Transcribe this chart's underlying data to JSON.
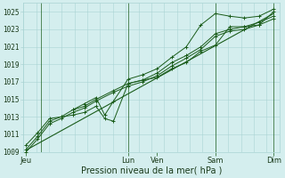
{
  "background_color": "#d4eeee",
  "grid_color": "#aad4d4",
  "line_color": "#1a5c1a",
  "text_color": "#1a3a1a",
  "ylim": [
    1009,
    1026
  ],
  "yticks": [
    1009,
    1011,
    1013,
    1015,
    1017,
    1019,
    1021,
    1023,
    1025
  ],
  "xlabel": "Pression niveau de la mer( hPa )",
  "day_labels": [
    "Jeu",
    "Lun",
    "Ven",
    "Sam",
    "Dim"
  ],
  "day_positions": [
    0.0,
    3.5,
    4.5,
    6.5,
    8.5
  ],
  "vline_positions": [
    0.5,
    3.5,
    6.5,
    8.5
  ],
  "xlim": [
    -0.1,
    8.7
  ],
  "trend_line": {
    "x": [
      0.0,
      8.5
    ],
    "y": [
      1009.2,
      1024.8
    ]
  },
  "series1": {
    "x": [
      0.0,
      0.4,
      0.8,
      1.2,
      1.6,
      2.0,
      2.4,
      2.7,
      3.0,
      3.5,
      4.0,
      4.5,
      5.0,
      5.5,
      6.0,
      6.5,
      7.0,
      7.5,
      8.0,
      8.5
    ],
    "y": [
      1009.8,
      1011.2,
      1012.8,
      1013.0,
      1013.2,
      1013.5,
      1014.2,
      1012.8,
      1012.5,
      1016.8,
      1017.2,
      1017.5,
      1018.5,
      1019.2,
      1020.5,
      1021.2,
      1023.3,
      1023.3,
      1023.5,
      1025.0
    ]
  },
  "series2": {
    "x": [
      0.0,
      0.4,
      0.8,
      1.2,
      1.6,
      2.0,
      2.4,
      3.0,
      3.5,
      4.0,
      4.5,
      5.0,
      5.5,
      6.0,
      6.5,
      7.0,
      7.5,
      8.0,
      8.5
    ],
    "y": [
      1009.3,
      1010.8,
      1012.5,
      1013.0,
      1013.8,
      1014.2,
      1015.0,
      1016.0,
      1016.8,
      1017.2,
      1018.0,
      1019.2,
      1020.0,
      1021.0,
      1022.5,
      1023.0,
      1023.3,
      1023.8,
      1024.5
    ]
  },
  "series3": {
    "x": [
      0.0,
      0.4,
      0.8,
      1.2,
      1.6,
      2.0,
      2.4,
      3.0,
      3.5,
      4.0,
      4.5,
      5.0,
      5.5,
      6.0,
      6.5,
      7.0,
      7.5,
      8.0,
      8.5
    ],
    "y": [
      1009.0,
      1010.5,
      1012.2,
      1012.8,
      1013.5,
      1014.0,
      1014.8,
      1015.8,
      1016.5,
      1017.0,
      1017.7,
      1018.8,
      1019.7,
      1020.7,
      1022.2,
      1022.8,
      1023.0,
      1023.5,
      1024.2
    ]
  },
  "series4": {
    "x": [
      1.6,
      2.0,
      2.4,
      2.7,
      3.0,
      3.5,
      4.0,
      4.5,
      5.0,
      5.5,
      6.0,
      6.5,
      7.0,
      7.5,
      8.0,
      8.5
    ],
    "y": [
      1013.8,
      1014.5,
      1015.2,
      1013.2,
      1014.8,
      1017.3,
      1017.8,
      1018.5,
      1019.8,
      1021.0,
      1023.5,
      1024.8,
      1024.5,
      1024.3,
      1024.5,
      1025.3
    ]
  }
}
